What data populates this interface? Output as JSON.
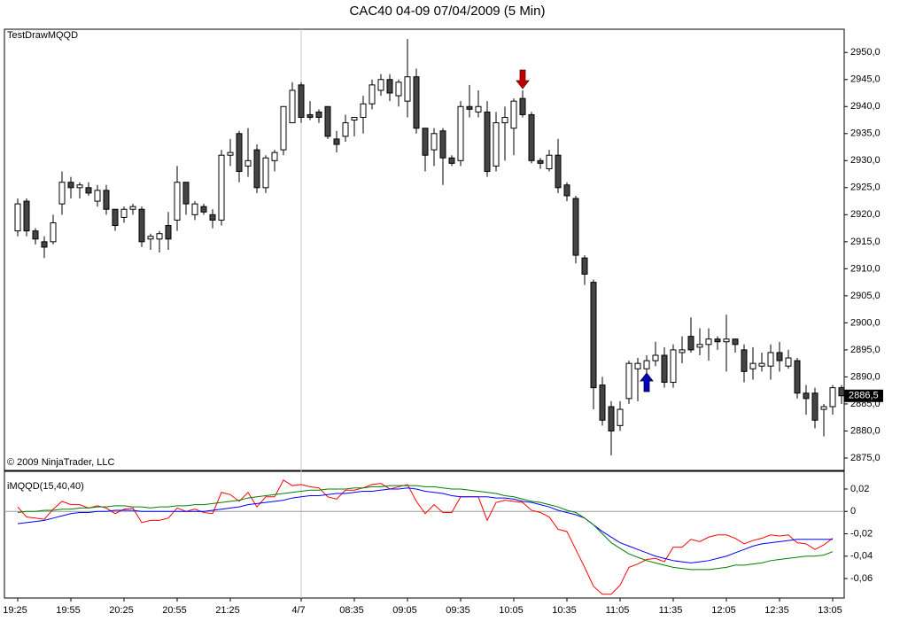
{
  "chart_data": [
    {
      "type": "candlestick",
      "title": "CAC40 04-09  07/04/2009 (5 Min)",
      "annotations": [
        "TestDrawMQQD",
        "© 2009 NinjaTrader, LLC"
      ],
      "up_color": "#ffffff",
      "down_color": "#444444",
      "open": [
        2917,
        2922.5,
        2917,
        2915,
        2915,
        2922,
        2926,
        2925,
        2925,
        2922.5,
        2924.5,
        2921,
        2919.5,
        2921,
        2921,
        2915.5,
        2915.5,
        2918,
        2919,
        2926,
        2920,
        2921.5,
        2920,
        2919,
        2931,
        2935,
        2929,
        2932,
        2925,
        2930,
        2932,
        2937,
        2944,
        2938.5,
        2939,
        2940,
        2934,
        2934.5,
        2937.5,
        2938,
        2940.5,
        2943,
        2945,
        2942,
        2941,
        2945.5,
        2936,
        2932,
        2935.5,
        2930.5,
        2930,
        2940,
        2939,
        2939,
        2929,
        2937,
        2936,
        2941.5,
        2938.5,
        2930,
        2928.5,
        2931,
        2925.5,
        2923,
        2912,
        2907.5,
        2888.5,
        2884.5,
        2881,
        2886,
        2891.5,
        2891.5,
        2893,
        2894,
        2889,
        2894.5,
        2897.5,
        2895.5,
        2896,
        2897,
        2896.5,
        2897,
        2895,
        2891.5,
        2892,
        2892,
        2894.5,
        2892,
        2893,
        2887,
        2887,
        2884,
        2884.5,
        2888
      ],
      "high": [
        2923,
        2923,
        2917.5,
        2916,
        2920,
        2928,
        2927,
        2926,
        2926,
        2925.5,
        2925.5,
        2921,
        2921.5,
        2922,
        2921.5,
        2916.5,
        2917,
        2920.5,
        2929,
        2926,
        2922.5,
        2922,
        2921,
        2932,
        2934,
        2935.5,
        2936,
        2933,
        2931,
        2932,
        2940,
        2944.5,
        2944.5,
        2941,
        2939.5,
        2940,
        2935.5,
        2938.5,
        2938,
        2942,
        2945,
        2946,
        2946,
        2945,
        2952.5,
        2947,
        2936,
        2936,
        2936,
        2931,
        2941,
        2944,
        2943,
        2941,
        2939,
        2940,
        2941.5,
        2943,
        2939,
        2930.5,
        2932,
        2934,
        2926,
        2923.5,
        2912.5,
        2908,
        2890,
        2885.5,
        2885.5,
        2893,
        2893.5,
        2894,
        2896.5,
        2895.5,
        2896,
        2897.5,
        2901,
        2899,
        2899,
        2897.5,
        2901.5,
        2897,
        2896,
        2895.5,
        2894.5,
        2896,
        2896.5,
        2895,
        2893.5,
        2888.5,
        2888,
        2885,
        2888.5,
        2888.5
      ],
      "low": [
        2916,
        2916,
        2914.5,
        2912,
        2914.5,
        2920,
        2923,
        2923,
        2923.5,
        2921.5,
        2920,
        2917,
        2918.5,
        2920,
        2914,
        2913.5,
        2913,
        2913.5,
        2917,
        2920,
        2919,
        2920,
        2917.5,
        2918,
        2929,
        2926,
        2927,
        2924,
        2924,
        2928,
        2931,
        2937,
        2937,
        2937.5,
        2937,
        2934,
        2931.5,
        2933.5,
        2934.5,
        2935,
        2939.5,
        2942,
        2941,
        2940,
        2938,
        2935,
        2928,
        2929,
        2925.5,
        2929,
        2929,
        2938,
        2938,
        2927,
        2928,
        2930,
        2931,
        2938,
        2929.5,
        2928.5,
        2928,
        2924,
        2922.5,
        2911,
        2907,
        2884,
        2881,
        2875.5,
        2880,
        2885,
        2885.5,
        2888,
        2892,
        2888,
        2888,
        2892.5,
        2894.5,
        2894,
        2893,
        2895,
        2891,
        2894.5,
        2889,
        2889.5,
        2891,
        2889.5,
        2891,
        2891.5,
        2886,
        2883,
        2880.5,
        2879,
        2883,
        2885
      ],
      "close": [
        2922,
        2917,
        2915.5,
        2914,
        2918.5,
        2926,
        2925,
        2925.5,
        2924,
        2924.5,
        2921,
        2918,
        2921,
        2921.5,
        2915,
        2916,
        2916.5,
        2915.5,
        2926,
        2922,
        2922,
        2920.5,
        2919,
        2931,
        2931.5,
        2928,
        2930,
        2925,
        2930.5,
        2931.5,
        2940,
        2943,
        2938,
        2938,
        2938,
        2934.5,
        2933,
        2937,
        2938,
        2940.5,
        2944,
        2945,
        2942.5,
        2944.5,
        2945.5,
        2936,
        2931,
        2935,
        2930.5,
        2929.5,
        2940,
        2939.5,
        2940,
        2928,
        2937,
        2938,
        2941,
        2938.5,
        2930,
        2929.5,
        2931,
        2925,
        2923.5,
        2912.5,
        2909,
        2888,
        2882,
        2880,
        2884,
        2892.5,
        2892.5,
        2893,
        2894,
        2889,
        2895,
        2895,
        2895,
        2896,
        2897,
        2896.5,
        2897,
        2896,
        2891,
        2892.5,
        2892.5,
        2894.5,
        2893,
        2893.5,
        2887,
        2886,
        2882,
        2884.5,
        2888,
        2886.5
      ],
      "last_price": {
        "value": 2886.5,
        "label": "2886,5"
      },
      "ylim": [
        2872.7,
        2954.3
      ],
      "yticks": [
        {
          "value": 2875,
          "label": "2875,0"
        },
        {
          "value": 2880,
          "label": "2880,0"
        },
        {
          "value": 2885,
          "label": "2885,0"
        },
        {
          "value": 2890,
          "label": "2890,0"
        },
        {
          "value": 2895,
          "label": "2895,0"
        },
        {
          "value": 2900,
          "label": "2900,0"
        },
        {
          "value": 2905,
          "label": "2905,0"
        },
        {
          "value": 2910,
          "label": "2910,0"
        },
        {
          "value": 2915,
          "label": "2915,0"
        },
        {
          "value": 2920,
          "label": "2920,0"
        },
        {
          "value": 2925,
          "label": "2925,0"
        },
        {
          "value": 2930,
          "label": "2930,0"
        },
        {
          "value": 2935,
          "label": "2935,0"
        },
        {
          "value": 2940,
          "label": "2940,0"
        },
        {
          "value": 2945,
          "label": "2945,0"
        },
        {
          "value": 2950,
          "label": "2950,0"
        }
      ]
    },
    {
      "type": "line",
      "title": "iMQQD(15,40,40)",
      "categories": [
        "19:25",
        null,
        null,
        null,
        null,
        null,
        "19:55",
        null,
        null,
        null,
        null,
        null,
        "20:25",
        null,
        null,
        null,
        null,
        null,
        "20:55",
        null,
        null,
        null,
        null,
        null,
        "21:25",
        null,
        null,
        null,
        null,
        null,
        null,
        null,
        "4/7",
        null,
        null,
        null,
        null,
        null,
        "08:35",
        null,
        null,
        null,
        null,
        null,
        "09:05",
        null,
        null,
        null,
        null,
        null,
        "09:35",
        null,
        null,
        null,
        null,
        null,
        "10:05",
        null,
        null,
        null,
        null,
        null,
        "10:35",
        null,
        null,
        null,
        null,
        null,
        "11:05",
        null,
        null,
        null,
        null,
        null,
        "11:35",
        null,
        null,
        null,
        null,
        null,
        "12:05",
        null,
        null,
        null,
        null,
        null,
        "12:35",
        null,
        null,
        null,
        null,
        null,
        "13:05",
        null
      ],
      "series": [
        {
          "color": "#ff0000",
          "values": [
            0.004,
            -0.005,
            -0.006,
            -0.007,
            0.002,
            0.009,
            0.006,
            0.006,
            0.003,
            0.005,
            0.003,
            -0.002,
            0.002,
            0.003,
            -0.01,
            -0.008,
            -0.008,
            -0.006,
            0.003,
            0,
            0.002,
            -0.001,
            -0.002,
            0.017,
            0.015,
            0.009,
            0.017,
            0.004,
            0.013,
            0.013,
            0.028,
            0.023,
            0.024,
            0.022,
            0.021,
            0.013,
            0.011,
            0.019,
            0.019,
            0.021,
            0.024,
            0.025,
            0.02,
            0.022,
            0.024,
            0.009,
            -0.002,
            0.006,
            -0.001,
            -0.001,
            0.013,
            0.013,
            0.013,
            -0.008,
            0.008,
            0.01,
            0.009,
            0.008,
            0.001,
            -0.001,
            -0.005,
            -0.016,
            -0.018,
            -0.034,
            -0.05,
            -0.067,
            -0.074,
            -0.074,
            -0.066,
            -0.05,
            -0.047,
            -0.043,
            -0.042,
            -0.045,
            -0.032,
            -0.032,
            -0.025,
            -0.027,
            -0.023,
            -0.021,
            -0.021,
            -0.024,
            -0.029,
            -0.026,
            -0.024,
            -0.021,
            -0.022,
            -0.021,
            -0.028,
            -0.029,
            -0.034,
            -0.03,
            -0.024,
            null
          ]
        },
        {
          "color": "#0000ff",
          "values": [
            -0.011,
            -0.01,
            -0.009,
            -0.008,
            -0.006,
            -0.004,
            -0.002,
            -0.001,
            -0.001,
            0,
            0,
            0.001,
            0.001,
            0.001,
            0,
            0,
            0,
            0,
            0,
            0,
            0,
            0,
            0.001,
            0.002,
            0.003,
            0.004,
            0.006,
            0.007,
            0.008,
            0.009,
            0.01,
            0.012,
            0.013,
            0.014,
            0.014,
            0.015,
            0.016,
            0.016,
            0.017,
            0.018,
            0.018,
            0.019,
            0.02,
            0.02,
            0.021,
            0.02,
            0.018,
            0.017,
            0.016,
            0.014,
            0.013,
            0.013,
            0.013,
            0.013,
            0.012,
            0.012,
            0.011,
            0.009,
            0.008,
            0.006,
            0.004,
            0.001,
            -0.001,
            -0.003,
            -0.006,
            -0.012,
            -0.018,
            -0.023,
            -0.028,
            -0.031,
            -0.034,
            -0.037,
            -0.04,
            -0.042,
            -0.044,
            -0.045,
            -0.046,
            -0.045,
            -0.044,
            -0.042,
            -0.04,
            -0.037,
            -0.034,
            -0.031,
            -0.029,
            -0.028,
            -0.027,
            -0.026,
            -0.025,
            -0.025,
            -0.025,
            -0.025,
            -0.025,
            null
          ]
        },
        {
          "color": "#008000",
          "values": [
            -0.001,
            0,
            0,
            0.001,
            0.001,
            0.002,
            0.002,
            0.003,
            0.003,
            0.004,
            0.004,
            0.005,
            0.005,
            0.004,
            0.004,
            0.003,
            0.004,
            0.004,
            0.005,
            0.005,
            0.006,
            0.006,
            0.007,
            0.008,
            0.009,
            0.01,
            0.012,
            0.013,
            0.014,
            0.015,
            0.016,
            0.017,
            0.018,
            0.019,
            0.019,
            0.02,
            0.02,
            0.02,
            0.021,
            0.021,
            0.022,
            0.022,
            0.023,
            0.023,
            0.023,
            0.023,
            0.022,
            0.022,
            0.021,
            0.02,
            0.02,
            0.019,
            0.018,
            0.017,
            0.016,
            0.014,
            0.013,
            0.011,
            0.009,
            0.008,
            0.006,
            0.004,
            0.001,
            -0.001,
            -0.006,
            -0.012,
            -0.02,
            -0.028,
            -0.033,
            -0.038,
            -0.041,
            -0.044,
            -0.046,
            -0.048,
            -0.05,
            -0.051,
            -0.052,
            -0.052,
            -0.052,
            -0.051,
            -0.05,
            -0.048,
            -0.048,
            -0.047,
            -0.046,
            -0.044,
            -0.043,
            -0.042,
            -0.041,
            -0.04,
            -0.04,
            -0.039,
            -0.036,
            null
          ]
        }
      ],
      "zero_line": true,
      "ylim": [
        -0.0774,
        0.0358
      ],
      "yticks": [
        {
          "value": 0.02,
          "label": "0,02"
        },
        0,
        {
          "value": -0.02,
          "label": "-0,02"
        },
        {
          "value": -0.04,
          "label": "-0,04"
        },
        {
          "value": -0.06,
          "label": "-0,06"
        }
      ]
    }
  ]
}
